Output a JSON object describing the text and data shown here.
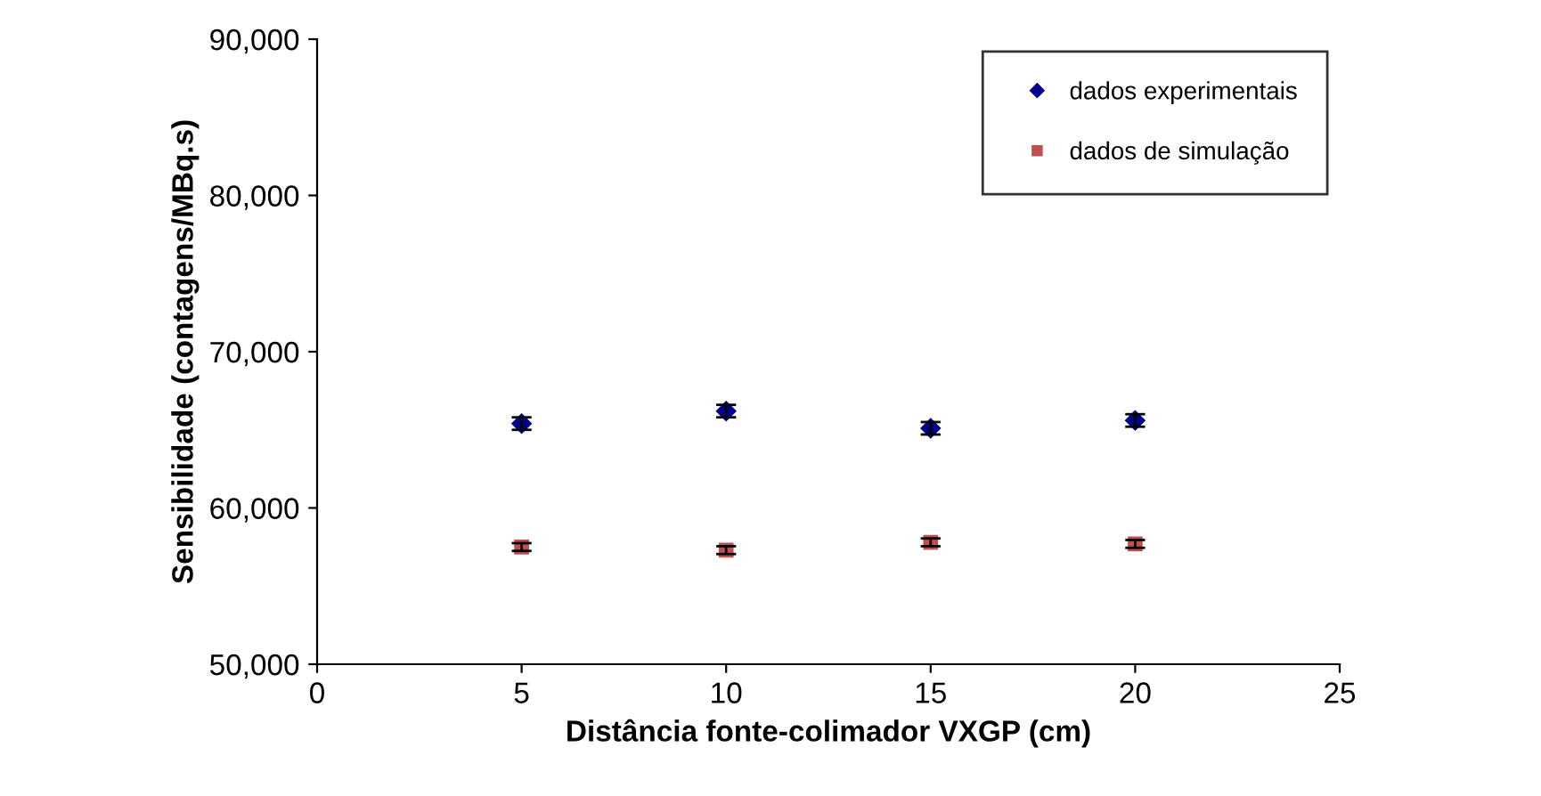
{
  "chart_data": {
    "type": "scatter",
    "xlabel": "Distância fonte-colimador VXGP (cm)",
    "ylabel": "Sensibilidade (contagens/MBq.s)",
    "x": [
      5,
      10,
      15,
      20
    ],
    "series": [
      {
        "name": "dados experimentais",
        "color": "#00008b",
        "marker": "diamond",
        "values": [
          65400,
          66200,
          65100,
          65600
        ],
        "errors": [
          400,
          400,
          400,
          400
        ]
      },
      {
        "name": "dados de simulação",
        "color": "#c0504d",
        "marker": "square",
        "values": [
          57500,
          57300,
          57800,
          57700
        ],
        "errors": [
          250,
          250,
          250,
          250
        ]
      }
    ],
    "xlim": [
      0,
      25
    ],
    "xticks": [
      0,
      5,
      10,
      15,
      20,
      25
    ],
    "ylim": [
      50000,
      90000
    ],
    "yticks": [
      {
        "value": 50000,
        "label": "50,000"
      },
      {
        "value": 60000,
        "label": "60,000"
      },
      {
        "value": 70000,
        "label": "70,000"
      },
      {
        "value": 80000,
        "label": "80,000"
      },
      {
        "value": 90000,
        "label": "90,000"
      }
    ],
    "grid": false,
    "legend": "top right"
  }
}
